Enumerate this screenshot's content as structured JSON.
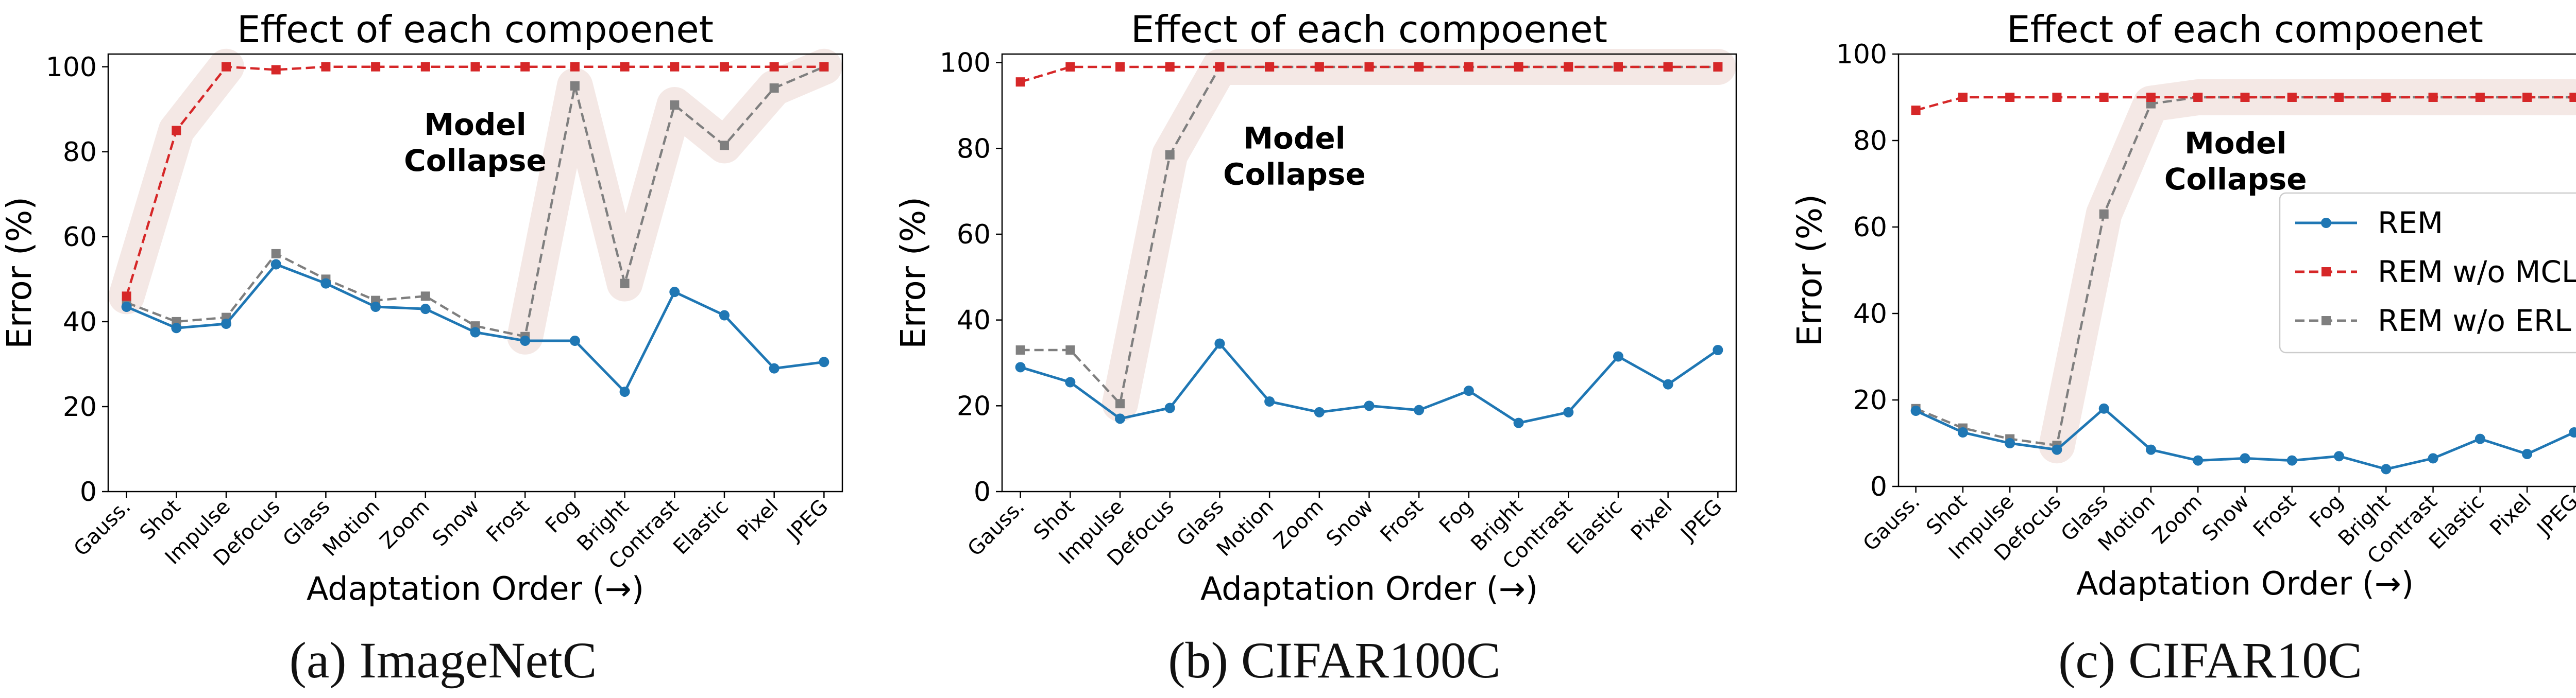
{
  "colors": {
    "rem": "#1f77b4",
    "rem_wo_mcl": "#d62728",
    "rem_wo_erl": "#7f7f7f",
    "highlight": "#f3e7e4",
    "annotation_text": "#000000",
    "axis": "#000000",
    "grid_bg": "#ffffff"
  },
  "chart_data": [
    {
      "id": "imagenetc",
      "type": "line",
      "title": "Effect of each compoenet",
      "caption": "(a) ImageNetC",
      "xlabel": "Adaptation Order (→)",
      "ylabel": "Error (%)",
      "ylim": [
        0,
        103
      ],
      "yticks": [
        0,
        20,
        40,
        60,
        80,
        100
      ],
      "grid": false,
      "legend": "none",
      "categories": [
        "Gauss.",
        "Shot",
        "Impulse",
        "Defocus",
        "Glass",
        "Motion",
        "Zoom",
        "Snow",
        "Frost",
        "Fog",
        "Bright",
        "Contrast",
        "Elastic",
        "Pixel",
        "JPEG"
      ],
      "annotation": "Model\nCollapse",
      "annotation_lines": [
        "Model",
        "Collapse"
      ],
      "series": [
        {
          "name": "REM",
          "style": "solid",
          "marker": "circle",
          "values": [
            43.5,
            38.5,
            39.5,
            53.5,
            49.0,
            43.5,
            43.0,
            37.5,
            35.5,
            35.5,
            23.5,
            47.0,
            41.5,
            29.0,
            30.5
          ]
        },
        {
          "name": "REM w/o MCL",
          "style": "dashed",
          "marker": "square",
          "values": [
            46.0,
            85.0,
            100.0,
            99.3,
            100.0,
            100.0,
            100.0,
            100.0,
            100.0,
            100.0,
            100.0,
            100.0,
            100.0,
            100.0,
            100.0
          ]
        },
        {
          "name": "REM w/o ERL",
          "style": "dashed",
          "marker": "square",
          "values": [
            44.5,
            40.0,
            41.0,
            56.0,
            50.0,
            45.0,
            46.0,
            39.0,
            36.5,
            95.5,
            49.0,
            91.0,
            81.5,
            95.0,
            100.0
          ]
        }
      ]
    },
    {
      "id": "cifar100c",
      "type": "line",
      "title": "Effect of each compoenet",
      "caption": "(b) CIFAR100C",
      "xlabel": "Adaptation Order (→)",
      "ylabel": "Error (%)",
      "ylim": [
        0,
        102
      ],
      "yticks": [
        0,
        20,
        40,
        60,
        80,
        100
      ],
      "grid": false,
      "legend": "none",
      "categories": [
        "Gauss.",
        "Shot",
        "Impulse",
        "Defocus",
        "Glass",
        "Motion",
        "Zoom",
        "Snow",
        "Frost",
        "Fog",
        "Bright",
        "Contrast",
        "Elastic",
        "Pixel",
        "JPEG"
      ],
      "annotation": "Model\nCollapse",
      "annotation_lines": [
        "Model",
        "Collapse"
      ],
      "series": [
        {
          "name": "REM",
          "style": "solid",
          "marker": "circle",
          "values": [
            29.0,
            25.5,
            17.0,
            19.5,
            34.5,
            21.0,
            18.5,
            20.0,
            19.0,
            23.5,
            16.0,
            18.5,
            31.5,
            25.0,
            33.0
          ]
        },
        {
          "name": "REM w/o MCL",
          "style": "dashed",
          "marker": "square",
          "values": [
            95.5,
            99.0,
            99.0,
            99.0,
            99.0,
            99.0,
            99.0,
            99.0,
            99.0,
            99.0,
            99.0,
            99.0,
            99.0,
            99.0,
            99.0
          ]
        },
        {
          "name": "REM w/o ERL",
          "style": "dashed",
          "marker": "square",
          "values": [
            33.0,
            33.0,
            20.5,
            78.5,
            99.0,
            99.0,
            99.0,
            99.0,
            99.0,
            99.0,
            99.0,
            99.0,
            99.0,
            99.0,
            99.0
          ]
        }
      ]
    },
    {
      "id": "cifar10c",
      "type": "line",
      "title": "Effect of each compoenet",
      "caption": "(c) CIFAR10C",
      "xlabel": "Adaptation Order (→)",
      "ylabel": "Error (%)",
      "ylim": [
        0,
        100
      ],
      "yticks": [
        0,
        20,
        40,
        60,
        80,
        100
      ],
      "grid": false,
      "legend": "right",
      "categories": [
        "Gauss.",
        "Shot",
        "Impulse",
        "Defocus",
        "Glass",
        "Motion",
        "Zoom",
        "Snow",
        "Frost",
        "Fog",
        "Bright",
        "Contrast",
        "Elastic",
        "Pixel",
        "JPEG"
      ],
      "annotation": "Model\nCollapse",
      "annotation_lines": [
        "Model",
        "Collapse"
      ],
      "series": [
        {
          "name": "REM",
          "style": "solid",
          "marker": "circle",
          "values": [
            17.5,
            12.5,
            10.0,
            8.5,
            18.0,
            8.5,
            6.0,
            6.5,
            6.0,
            7.0,
            4.0,
            6.5,
            11.0,
            7.5,
            12.5
          ]
        },
        {
          "name": "REM w/o MCL",
          "style": "dashed",
          "marker": "square",
          "values": [
            87.0,
            90.0,
            90.0,
            90.0,
            90.0,
            90.0,
            90.0,
            90.0,
            90.0,
            90.0,
            90.0,
            90.0,
            90.0,
            90.0,
            90.0
          ]
        },
        {
          "name": "REM w/o ERL",
          "style": "dashed",
          "marker": "square",
          "values": [
            18.0,
            13.5,
            11.0,
            9.5,
            63.0,
            88.5,
            90.0,
            90.0,
            90.0,
            90.0,
            90.0,
            90.0,
            90.0,
            90.0,
            90.0
          ]
        }
      ]
    }
  ]
}
